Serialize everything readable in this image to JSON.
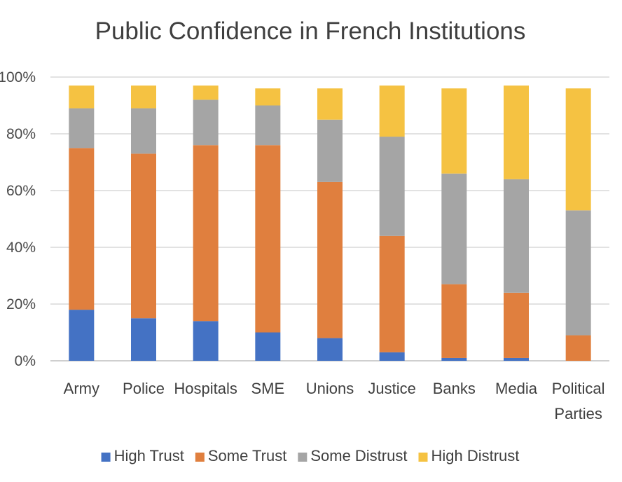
{
  "chart_data": {
    "type": "bar",
    "stacked": true,
    "title": "Public Confidence in French Institutions",
    "xlabel": "",
    "ylabel": "",
    "ylim": [
      0,
      100
    ],
    "y_ticks": [
      0,
      20,
      40,
      60,
      80,
      100
    ],
    "y_tick_labels": [
      "0%",
      "20%",
      "40%",
      "60%",
      "80%",
      "100%"
    ],
    "grid": true,
    "legend_position": "bottom",
    "categories": [
      [
        "Army"
      ],
      [
        "Police"
      ],
      [
        "Hospitals"
      ],
      [
        "SME"
      ],
      [
        "Unions"
      ],
      [
        "Justice"
      ],
      [
        "Banks"
      ],
      [
        "Media"
      ],
      [
        "Political",
        "Parties"
      ]
    ],
    "series": [
      {
        "name": "High Trust",
        "color": "#4472c4",
        "values": [
          18,
          15,
          14,
          10,
          8,
          3,
          1,
          1,
          0
        ]
      },
      {
        "name": "Some Trust",
        "color": "#e07f3e",
        "values": [
          57,
          58,
          62,
          66,
          55,
          41,
          26,
          23,
          9
        ]
      },
      {
        "name": "Some Distrust",
        "color": "#a5a5a5",
        "values": [
          14,
          16,
          16,
          14,
          22,
          35,
          39,
          40,
          44
        ]
      },
      {
        "name": "High Distrust",
        "color": "#f5c242",
        "values": [
          8,
          8,
          5,
          6,
          11,
          18,
          30,
          33,
          43
        ]
      }
    ]
  }
}
